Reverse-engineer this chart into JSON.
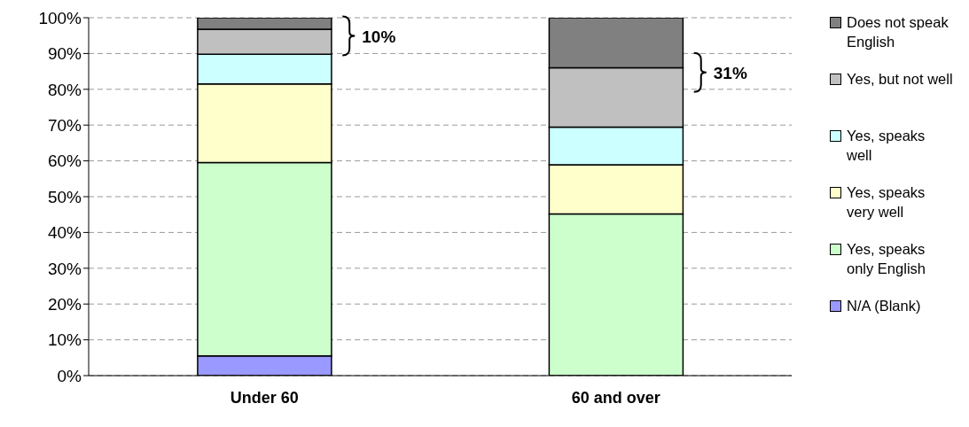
{
  "chart_data": {
    "type": "bar",
    "stacked": true,
    "categories": [
      "Under 60",
      "60 and over"
    ],
    "series": [
      {
        "name": "N/A (Blank)",
        "color": "#9999ff",
        "values": [
          5.5,
          0
        ]
      },
      {
        "name": "Yes, speaks only English",
        "color": "#ccffcc",
        "values": [
          54,
          45.2
        ]
      },
      {
        "name": "Yes, speaks very well",
        "color": "#ffffcc",
        "values": [
          22,
          13.7
        ]
      },
      {
        "name": "Yes, speaks well",
        "color": "#ccffff",
        "values": [
          8.3,
          10.5
        ]
      },
      {
        "name": "Yes, but not well",
        "color": "#c0c0c0",
        "values": [
          7,
          16.6
        ]
      },
      {
        "name": "Does not speak English",
        "color": "#808080",
        "values": [
          3.2,
          14
        ]
      }
    ],
    "ylim": [
      0,
      100
    ],
    "yticks": [
      {
        "value": 0,
        "label": "0%"
      },
      {
        "value": 10,
        "label": "10%"
      },
      {
        "value": 20,
        "label": "20%"
      },
      {
        "value": 30,
        "label": "30%"
      },
      {
        "value": 40,
        "label": "40%"
      },
      {
        "value": 50,
        "label": "50%"
      },
      {
        "value": 60,
        "label": "60%"
      },
      {
        "value": 70,
        "label": "70%"
      },
      {
        "value": 80,
        "label": "80%"
      },
      {
        "value": 90,
        "label": "90%"
      },
      {
        "value": 100,
        "label": "100%"
      }
    ],
    "grid": "y",
    "legend": "right",
    "annotations": [
      "10%",
      "31%"
    ]
  }
}
